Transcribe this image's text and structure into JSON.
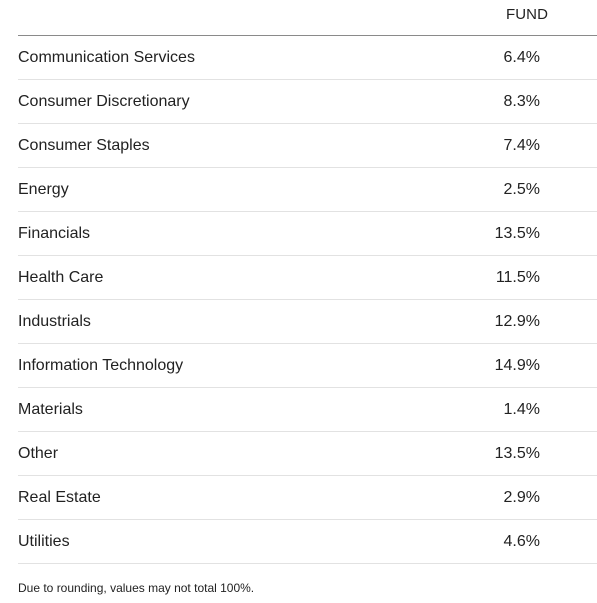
{
  "table": {
    "column_header": "FUND",
    "rows": [
      {
        "sector": "Communication Services",
        "value": "6.4%"
      },
      {
        "sector": "Consumer Discretionary",
        "value": "8.3%"
      },
      {
        "sector": "Consumer Staples",
        "value": "7.4%"
      },
      {
        "sector": "Energy",
        "value": "2.5%"
      },
      {
        "sector": "Financials",
        "value": "13.5%"
      },
      {
        "sector": "Health Care",
        "value": "11.5%"
      },
      {
        "sector": "Industrials",
        "value": "12.9%"
      },
      {
        "sector": "Information Technology",
        "value": "14.9%"
      },
      {
        "sector": "Materials",
        "value": "1.4%"
      },
      {
        "sector": "Other",
        "value": "13.5%"
      },
      {
        "sector": "Real Estate",
        "value": "2.9%"
      },
      {
        "sector": "Utilities",
        "value": "4.6%"
      }
    ]
  },
  "footnote": "Due to rounding, values may not total 100%."
}
